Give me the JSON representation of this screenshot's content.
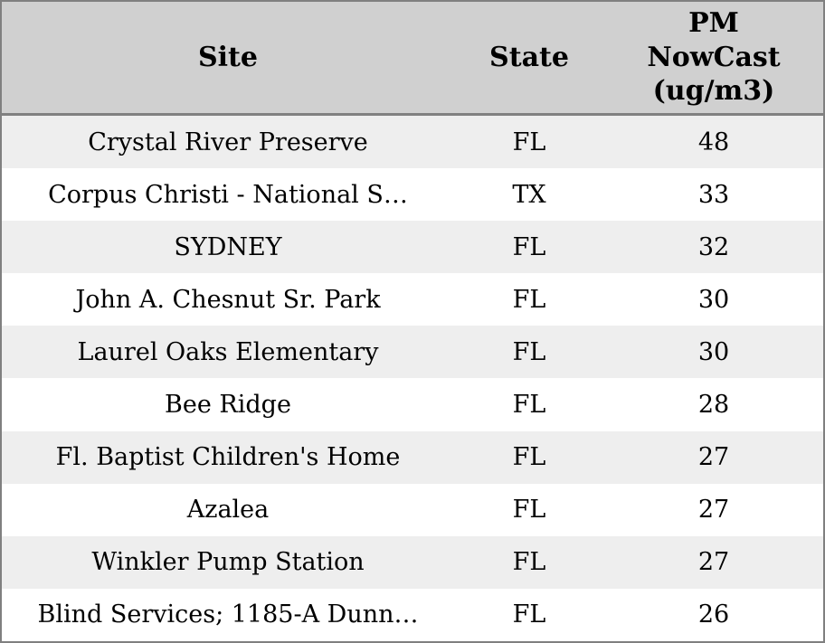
{
  "table": {
    "columns": [
      "Site",
      "State",
      "PM NowCast (ug/m3)"
    ],
    "rows": [
      {
        "site": "Crystal River Preserve",
        "state": "FL",
        "pm_nowcast": "48"
      },
      {
        "site": "Corpus Christi - National S…",
        "state": "TX",
        "pm_nowcast": "33"
      },
      {
        "site": "SYDNEY",
        "state": "FL",
        "pm_nowcast": "32"
      },
      {
        "site": "John A. Chesnut Sr. Park",
        "state": "FL",
        "pm_nowcast": "30"
      },
      {
        "site": "Laurel Oaks Elementary",
        "state": "FL",
        "pm_nowcast": "30"
      },
      {
        "site": "Bee Ridge",
        "state": "FL",
        "pm_nowcast": "28"
      },
      {
        "site": "Fl. Baptist Children's Home",
        "state": "FL",
        "pm_nowcast": "27"
      },
      {
        "site": "Azalea",
        "state": "FL",
        "pm_nowcast": "27"
      },
      {
        "site": "Winkler Pump Station",
        "state": "FL",
        "pm_nowcast": "27"
      },
      {
        "site": "Blind Services; 1185-A Dunn…",
        "state": "FL",
        "pm_nowcast": "26"
      }
    ]
  },
  "colors": {
    "header_bg": "#d0d0d0",
    "row_alt_bg": "#eeeeee",
    "row_bg": "#ffffff",
    "border": "#808080",
    "text": "#000000"
  },
  "chart_data": {
    "type": "table",
    "title": "",
    "columns": [
      "Site",
      "State",
      "PM NowCast (ug/m3)"
    ],
    "rows": [
      [
        "Crystal River Preserve",
        "FL",
        48
      ],
      [
        "Corpus Christi - National S…",
        "TX",
        33
      ],
      [
        "SYDNEY",
        "FL",
        32
      ],
      [
        "John A. Chesnut Sr. Park",
        "FL",
        30
      ],
      [
        "Laurel Oaks Elementary",
        "FL",
        30
      ],
      [
        "Bee Ridge",
        "FL",
        28
      ],
      [
        "Fl. Baptist Children's Home",
        "FL",
        27
      ],
      [
        "Azalea",
        "FL",
        27
      ],
      [
        "Winkler Pump Station",
        "FL",
        27
      ],
      [
        "Blind Services; 1185-A Dunn…",
        "FL",
        26
      ]
    ],
    "layout": {
      "zebra_striping": true,
      "header_position": "top",
      "grid": "outer-border-only"
    }
  }
}
